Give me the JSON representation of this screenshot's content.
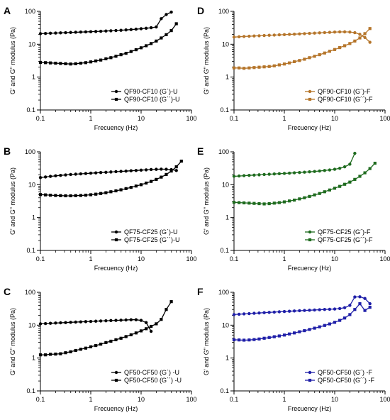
{
  "chart_data": [
    {
      "type": "line",
      "panel": "A",
      "xlabel": "Frecuency (Hz)",
      "ylabel": "G' and G\" modulus (Pa)",
      "xscale": "log",
      "yscale": "log",
      "xlim": [
        0.1,
        100
      ],
      "ylim": [
        0.1,
        100
      ],
      "xticks": [
        "0.1",
        "1",
        "10",
        "100"
      ],
      "yticks": [
        "0.1",
        "1",
        "10",
        "100"
      ],
      "legend_position": "bottom-right",
      "color": "#000000",
      "series": [
        {
          "name": "QF90-CF10 (G´)-U",
          "marker": "circle",
          "x": [
            0.1,
            0.126,
            0.158,
            0.2,
            0.251,
            0.316,
            0.398,
            0.501,
            0.631,
            0.794,
            1,
            1.26,
            1.58,
            2,
            2.51,
            3.16,
            3.98,
            5.01,
            6.31,
            7.94,
            10,
            12.6,
            15.8,
            20,
            25.1,
            31.6,
            39.8
          ],
          "y": [
            21,
            21.3,
            21.6,
            21.9,
            22.2,
            22.5,
            22.8,
            23.1,
            23.4,
            23.7,
            24,
            24.4,
            24.8,
            25.2,
            25.6,
            26.1,
            26.6,
            27.2,
            27.9,
            28.7,
            29.6,
            30.6,
            31.8,
            33.5,
            60,
            80,
            95
          ]
        },
        {
          "name": "QF90-CF10 (G´´)-U",
          "marker": "square",
          "x": [
            0.1,
            0.126,
            0.158,
            0.2,
            0.251,
            0.316,
            0.398,
            0.501,
            0.631,
            0.794,
            1,
            1.26,
            1.58,
            2,
            2.51,
            3.16,
            3.98,
            5.01,
            6.31,
            7.94,
            10,
            12.6,
            15.8,
            20,
            25.1,
            31.6,
            39.8,
            50.1
          ],
          "y": [
            2.8,
            2.75,
            2.7,
            2.65,
            2.6,
            2.55,
            2.5,
            2.55,
            2.65,
            2.75,
            2.9,
            3.1,
            3.3,
            3.6,
            3.9,
            4.3,
            4.8,
            5.3,
            6,
            6.8,
            7.8,
            9,
            10.5,
            12.5,
            15.5,
            19.5,
            26,
            42
          ]
        }
      ]
    },
    {
      "type": "line",
      "panel": "B",
      "xlabel": "Frecuency (Hz)",
      "ylabel": "G' and G\" modulus (Pa)",
      "xscale": "log",
      "yscale": "log",
      "xlim": [
        0.1,
        100
      ],
      "ylim": [
        0.1,
        100
      ],
      "xticks": [
        "0.1",
        "1",
        "10",
        "100"
      ],
      "yticks": [
        "0.1",
        "1",
        "10",
        "100"
      ],
      "legend_position": "bottom-right",
      "color": "#000000",
      "series": [
        {
          "name": "QF75-CF25 (G´)-U",
          "marker": "circle",
          "x": [
            0.1,
            0.126,
            0.158,
            0.2,
            0.251,
            0.316,
            0.398,
            0.501,
            0.631,
            0.794,
            1,
            1.26,
            1.58,
            2,
            2.51,
            3.16,
            3.98,
            5.01,
            6.31,
            7.94,
            10,
            12.6,
            15.8,
            20,
            25.1,
            31.6,
            39.8,
            50.1
          ],
          "y": [
            16.5,
            17.2,
            17.9,
            18.6,
            19.2,
            19.8,
            20.4,
            20.9,
            21.4,
            21.9,
            22.4,
            22.9,
            23.4,
            23.9,
            24.4,
            24.9,
            25.4,
            25.9,
            26.5,
            27.1,
            27.7,
            28.3,
            28.9,
            29.4,
            29.7,
            29.5,
            28.8,
            27
          ]
        },
        {
          "name": "QF75-CF25 (G´´)-U",
          "marker": "square",
          "x": [
            0.1,
            0.126,
            0.158,
            0.2,
            0.251,
            0.316,
            0.398,
            0.501,
            0.631,
            0.794,
            1,
            1.26,
            1.58,
            2,
            2.51,
            3.16,
            3.98,
            5.01,
            6.31,
            7.94,
            10,
            12.6,
            15.8,
            20,
            25.1,
            31.6,
            39.8,
            50.1,
            63.1
          ],
          "y": [
            5,
            4.9,
            4.8,
            4.7,
            4.65,
            4.6,
            4.6,
            4.65,
            4.7,
            4.8,
            4.95,
            5.15,
            5.4,
            5.7,
            6.1,
            6.5,
            7,
            7.6,
            8.3,
            9.1,
            10,
            11.2,
            12.6,
            14.5,
            17,
            20.5,
            26,
            35,
            52
          ]
        }
      ]
    },
    {
      "type": "line",
      "panel": "C",
      "xlabel": "Frecuency (Hz)",
      "ylabel": "G' and G\" modulus (Pa)",
      "xscale": "log",
      "yscale": "log",
      "xlim": [
        0.1,
        100
      ],
      "ylim": [
        0.1,
        100
      ],
      "xticks": [
        "0.1",
        "1",
        "10",
        "100"
      ],
      "yticks": [
        "0.1",
        "1",
        "10",
        "100"
      ],
      "legend_position": "bottom-right",
      "color": "#000000",
      "series": [
        {
          "name": "QF50-CF50 (G´) -U",
          "marker": "circle",
          "x": [
            0.1,
            0.126,
            0.158,
            0.2,
            0.251,
            0.316,
            0.398,
            0.501,
            0.631,
            0.794,
            1,
            1.26,
            1.58,
            2,
            2.51,
            3.16,
            3.98,
            5.01,
            6.31,
            7.94,
            10,
            12.6,
            15.8
          ],
          "y": [
            11,
            11.2,
            11.4,
            11.6,
            11.8,
            12,
            12.2,
            12.4,
            12.6,
            12.8,
            13,
            13.2,
            13.4,
            13.6,
            13.8,
            14,
            14.2,
            14.4,
            14.6,
            14.6,
            14,
            12,
            6.5
          ]
        },
        {
          "name": "QF50-CF50 (G´´) -U",
          "marker": "square",
          "x": [
            0.1,
            0.126,
            0.158,
            0.2,
            0.251,
            0.316,
            0.398,
            0.501,
            0.631,
            0.794,
            1,
            1.26,
            1.58,
            2,
            2.51,
            3.16,
            3.98,
            5.01,
            6.31,
            7.94,
            10,
            12.6,
            15.8,
            20,
            25.1,
            31.6,
            39.8
          ],
          "y": [
            1.25,
            1.25,
            1.3,
            1.32,
            1.35,
            1.45,
            1.55,
            1.7,
            1.85,
            2,
            2.2,
            2.4,
            2.65,
            2.95,
            3.25,
            3.6,
            4,
            4.5,
            5.1,
            5.8,
            6.7,
            7.8,
            9.2,
            11,
            15,
            30,
            52
          ]
        }
      ]
    },
    {
      "type": "line",
      "panel": "D",
      "xlabel": "Frecuency (Hz)",
      "ylabel": "G' and G\" modulus (Pa)",
      "xscale": "log",
      "yscale": "log",
      "xlim": [
        0.1,
        100
      ],
      "ylim": [
        0.1,
        100
      ],
      "xticks": [
        "0.1",
        "1",
        "10",
        "100"
      ],
      "yticks": [
        "0.1",
        "1",
        "10",
        "100"
      ],
      "legend_position": "bottom-right",
      "color": "#b5752a",
      "series": [
        {
          "name": "QF90-CF10 (G´)-F",
          "marker": "circle",
          "x": [
            0.1,
            0.126,
            0.158,
            0.2,
            0.251,
            0.316,
            0.398,
            0.501,
            0.631,
            0.794,
            1,
            1.26,
            1.58,
            2,
            2.51,
            3.16,
            3.98,
            5.01,
            6.31,
            7.94,
            10,
            12.6,
            15.8,
            20,
            25.1,
            31.6,
            39.8,
            50.1
          ],
          "y": [
            16.5,
            16.9,
            17.2,
            17.5,
            17.8,
            18.1,
            18.4,
            18.7,
            19,
            19.3,
            19.6,
            19.9,
            20.2,
            20.6,
            21,
            21.4,
            21.8,
            22.2,
            22.6,
            23,
            23.4,
            23.7,
            23.8,
            23.5,
            22.5,
            20,
            16,
            11.5
          ]
        },
        {
          "name": "QF90-CF10 (G´´)-F",
          "marker": "square",
          "x": [
            0.1,
            0.126,
            0.158,
            0.2,
            0.251,
            0.316,
            0.398,
            0.501,
            0.631,
            0.794,
            1,
            1.26,
            1.58,
            2,
            2.51,
            3.16,
            3.98,
            5.01,
            6.31,
            7.94,
            10,
            12.6,
            15.8,
            20,
            25.1,
            31.6,
            39.8,
            50.1
          ],
          "y": [
            1.9,
            1.9,
            1.85,
            1.9,
            1.95,
            2,
            2.05,
            2.1,
            2.2,
            2.35,
            2.5,
            2.7,
            2.95,
            3.2,
            3.5,
            3.9,
            4.3,
            4.8,
            5.4,
            6.1,
            6.9,
            7.9,
            9,
            10.5,
            12.5,
            15.5,
            21,
            30
          ]
        }
      ]
    },
    {
      "type": "line",
      "panel": "E",
      "xlabel": "Frecuency (Hz)",
      "ylabel": "G' and G\" modulus (Pa)",
      "xscale": "log",
      "yscale": "log",
      "xlim": [
        0.1,
        100
      ],
      "ylim": [
        0.1,
        100
      ],
      "xticks": [
        "0.1",
        "1",
        "10",
        "100"
      ],
      "yticks": [
        "0.1",
        "1",
        "10",
        "100"
      ],
      "legend_position": "bottom-right",
      "color": "#1e6b1e",
      "series": [
        {
          "name": "QF75-CF25 (G´)-F",
          "marker": "circle",
          "x": [
            0.1,
            0.126,
            0.158,
            0.2,
            0.251,
            0.316,
            0.398,
            0.501,
            0.631,
            0.794,
            1,
            1.26,
            1.58,
            2,
            2.51,
            3.16,
            3.98,
            5.01,
            6.31,
            7.94,
            10,
            12.6,
            15.8,
            20,
            25.1
          ],
          "y": [
            18,
            18.4,
            18.8,
            19.2,
            19.6,
            20,
            20.4,
            20.8,
            21.2,
            21.6,
            22,
            22.5,
            23,
            23.5,
            24,
            24.6,
            25.3,
            26.1,
            27,
            28.1,
            29.5,
            31.5,
            35,
            42,
            90
          ]
        },
        {
          "name": "QF75-CF25 (G´´)-F",
          "marker": "square",
          "x": [
            0.1,
            0.126,
            0.158,
            0.2,
            0.251,
            0.316,
            0.398,
            0.501,
            0.631,
            0.794,
            1,
            1.26,
            1.58,
            2,
            2.51,
            3.16,
            3.98,
            5.01,
            6.31,
            7.94,
            10,
            12.6,
            15.8,
            20,
            25.1,
            31.6,
            39.8,
            50.1,
            63.1
          ],
          "y": [
            2.9,
            2.85,
            2.8,
            2.75,
            2.7,
            2.65,
            2.6,
            2.65,
            2.75,
            2.85,
            3,
            3.2,
            3.4,
            3.7,
            4,
            4.4,
            4.9,
            5.4,
            6.1,
            6.9,
            7.8,
            8.9,
            10.3,
            12,
            14.5,
            18,
            23,
            31,
            45
          ]
        }
      ]
    },
    {
      "type": "line",
      "panel": "F",
      "xlabel": "Frecuency (Hz)",
      "ylabel": "G' and G\" modulus (Pa)",
      "xscale": "log",
      "yscale": "log",
      "xlim": [
        0.1,
        100
      ],
      "ylim": [
        0.1,
        100
      ],
      "xticks": [
        "0.1",
        "1",
        "10",
        "100"
      ],
      "yticks": [
        "0.1",
        "1",
        "10",
        "100"
      ],
      "legend_position": "bottom-right",
      "color": "#1f1fa8",
      "series": [
        {
          "name": "QF50-CF50 (G´) -F",
          "marker": "circle",
          "x": [
            0.1,
            0.126,
            0.158,
            0.2,
            0.251,
            0.316,
            0.398,
            0.501,
            0.631,
            0.794,
            1,
            1.26,
            1.58,
            2,
            2.51,
            3.16,
            3.98,
            5.01,
            6.31,
            7.94,
            10,
            12.6,
            15.8,
            20,
            25.1,
            31.6,
            39.8,
            50.1
          ],
          "y": [
            21,
            21.5,
            22,
            22.5,
            23,
            23.5,
            24,
            24.5,
            25,
            25.5,
            26,
            26.5,
            27,
            27.5,
            28,
            28.5,
            29,
            29.5,
            30,
            30.5,
            31,
            32,
            34,
            40,
            72,
            73,
            65,
            45
          ]
        },
        {
          "name": "QF50-CF50 (G´´) -F",
          "marker": "square",
          "x": [
            0.1,
            0.126,
            0.158,
            0.2,
            0.251,
            0.316,
            0.398,
            0.501,
            0.631,
            0.794,
            1,
            1.26,
            1.58,
            2,
            2.51,
            3.16,
            3.98,
            5.01,
            6.31,
            7.94,
            10,
            12.6,
            15.8,
            20,
            25.1,
            31.6,
            39.8,
            50.1
          ],
          "y": [
            3.6,
            3.55,
            3.5,
            3.55,
            3.65,
            3.8,
            4,
            4.2,
            4.45,
            4.7,
            5,
            5.4,
            5.8,
            6.3,
            6.8,
            7.4,
            8.1,
            8.9,
            9.8,
            10.9,
            12.2,
            14,
            16.5,
            21,
            30,
            45,
            28,
            35
          ]
        }
      ]
    }
  ]
}
